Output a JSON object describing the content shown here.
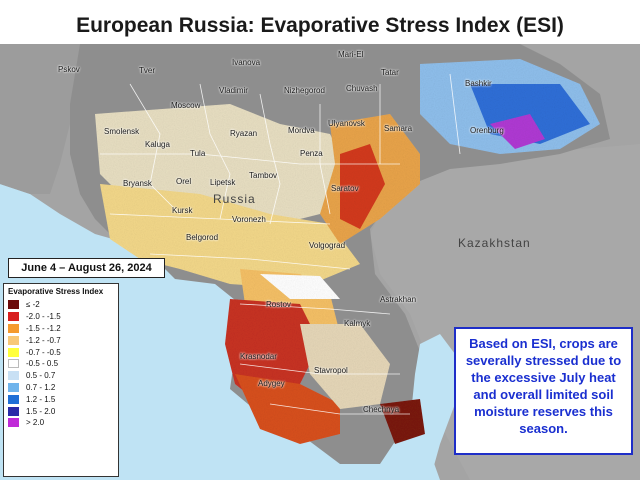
{
  "title": "European Russia: Evaporative Stress Index (ESI)",
  "date_range": "June 4 – August 26, 2024",
  "legend": {
    "title": "Evaporative Stress Index",
    "items": [
      {
        "label": "≤ -2",
        "color": "#6b0a0a"
      },
      {
        "label": "-2.0 - -1.5",
        "color": "#d81e1e"
      },
      {
        "label": "-1.5 - -1.2",
        "color": "#f59a2e"
      },
      {
        "label": "-1.2 - -0.7",
        "color": "#f8c878"
      },
      {
        "label": "-0.7 - -0.5",
        "color": "#ffff3a"
      },
      {
        "label": "-0.5 - 0.5",
        "color": "#ffffff"
      },
      {
        "label": "0.5 - 0.7",
        "color": "#c8e0f4"
      },
      {
        "label": "0.7 - 1.2",
        "color": "#6fb4ec"
      },
      {
        "label": "1.2 - 1.5",
        "color": "#1f6fd6"
      },
      {
        "label": "1.5 - 2.0",
        "color": "#2a2aa8"
      },
      {
        "label": "> 2.0",
        "color": "#c02ad8"
      }
    ]
  },
  "note": "Based on ESI, crops are severally stressed due to the excessive July heat and overall limited soil moisture reserves this season.",
  "country_labels": {
    "russia": "Russia",
    "kazakhstan": "Kazakhstan"
  },
  "regions": {
    "pskov": "Pskov",
    "tver": "Tver",
    "ivanova": "Ivanova",
    "mari_el": "Mari-El",
    "tatar": "Tatar",
    "bashkir": "Bashkir",
    "vladimir": "Vladimir",
    "nizhegorod": "Nizhegorod",
    "chuvash": "Chuvash",
    "moscow": "Moscow",
    "ulyanovsk": "Ulyanovsk",
    "samara": "Samara",
    "orenburg": "Orenburg",
    "smolensk": "Smolensk",
    "ryazan": "Ryazan",
    "mordva": "Mordva",
    "kaluga": "Kaluga",
    "tula": "Tula",
    "penza": "Penza",
    "tambov": "Tambov",
    "bryansk": "Bryansk",
    "orel": "Orel",
    "lipetsk": "Lipetsk",
    "saratov": "Saratov",
    "kursk": "Kursk",
    "voronezh": "Voronezh",
    "belgorod": "Belgorod",
    "volgograd": "Volgograd",
    "rostov": "Rostov",
    "astrakhan": "Astrakhan",
    "kalmyk": "Kalmyk",
    "krasnodar": "Krasnodar",
    "stavropol": "Stavropol",
    "adygey": "Adygey",
    "chechnya": "Chechnya"
  },
  "colors": {
    "sea": "#bfe3f4",
    "land_gray": "#9a9a9a",
    "russia_gray": "#8c8c8c",
    "note_blue": "#1a2fd0"
  }
}
